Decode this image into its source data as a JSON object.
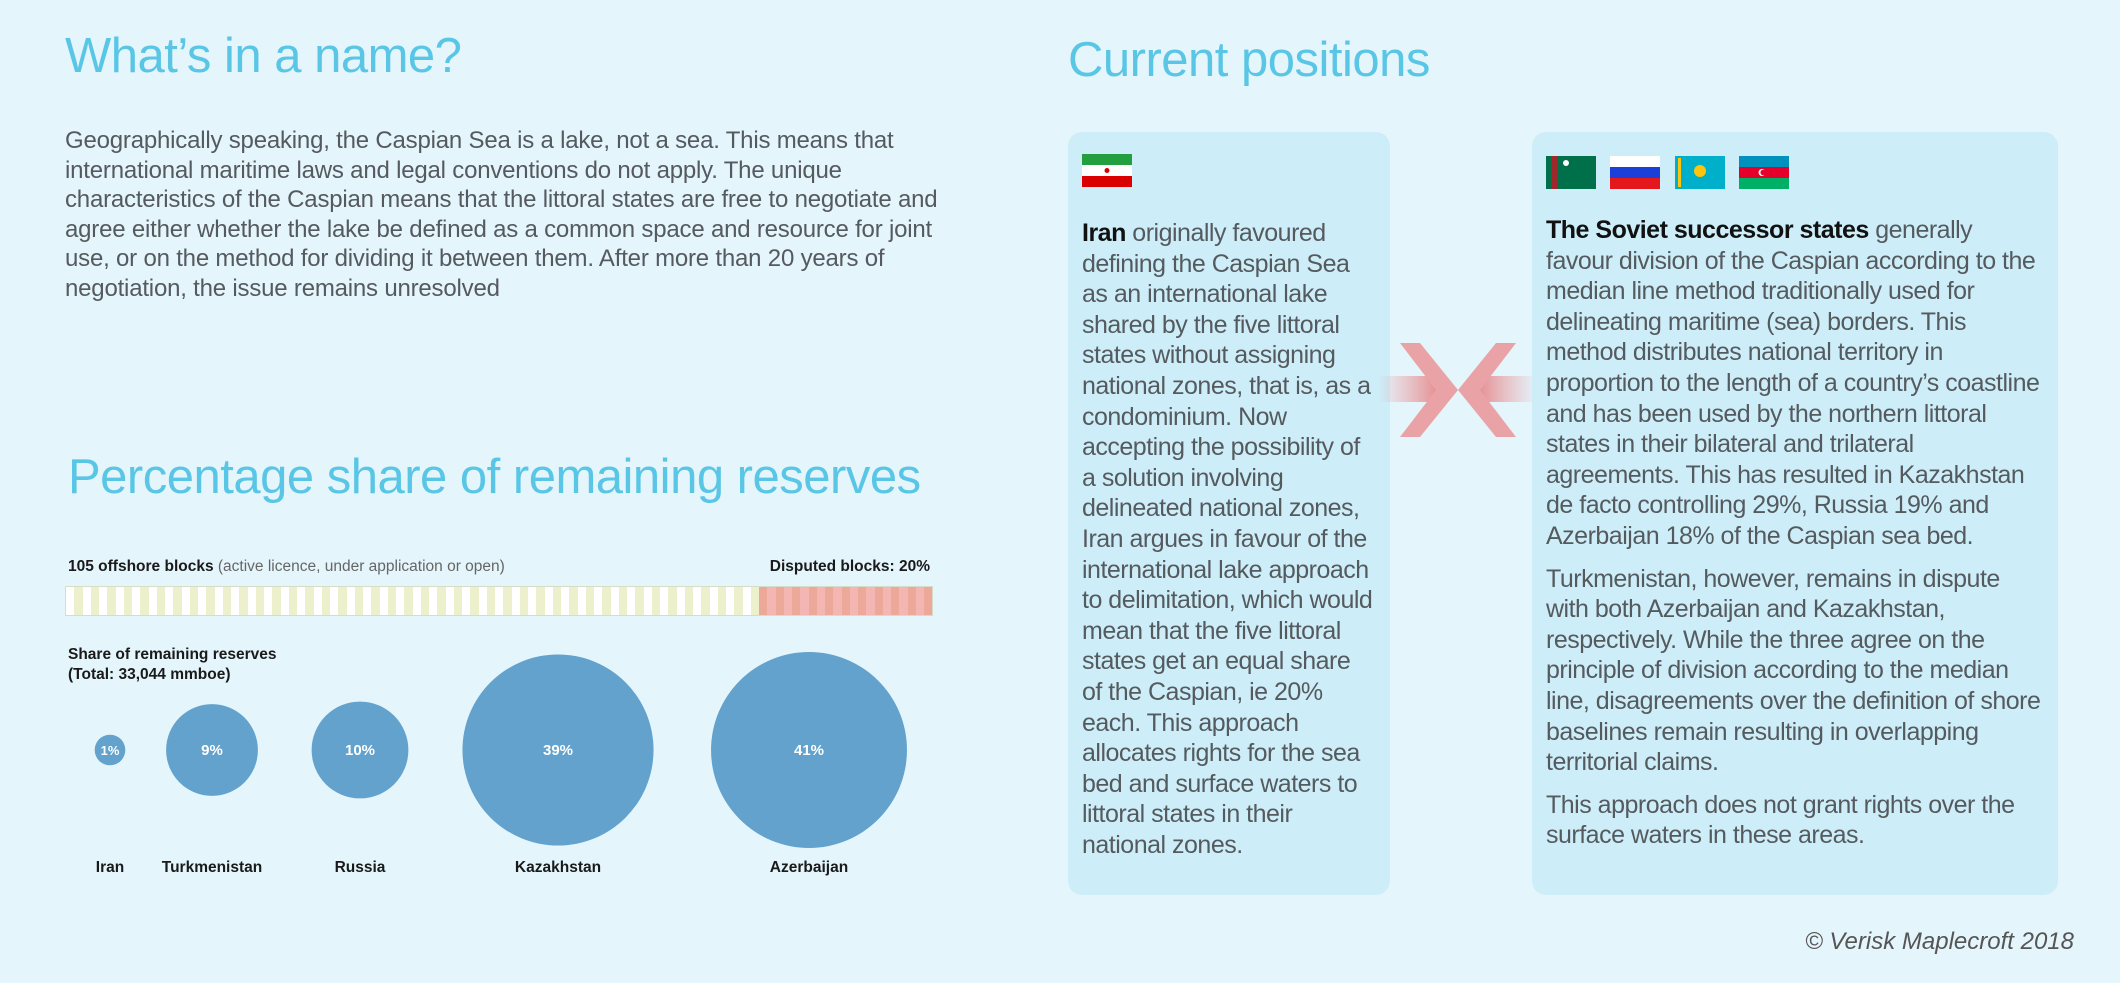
{
  "intro": {
    "title": "What’s in a name?",
    "body": "Geographically speaking, the Caspian Sea is a lake, not a sea. This means that international maritime laws and legal conventions do not apply. The unique characteristics of the Caspian means that the littoral states are free to negotiate and agree either whether the lake be defined as a common space and resource for joint use, or on the method for dividing it between them. After more than 20 years of negotiation, the issue remains unresolved"
  },
  "reserves": {
    "title": "Percentage share of remaining reserves",
    "blocks_label": "105 offshore blocks",
    "blocks_note": "(active licence, under application or open)",
    "disputed_label": "Disputed blocks: 20%",
    "share_label_1": "Share of remaining reserves",
    "share_label_2": "(Total: 33,044 mmboe)"
  },
  "chart_data": [
    {
      "type": "bar",
      "title": "105 offshore blocks",
      "total_blocks": 105,
      "disputed_percent": 20,
      "colors": {
        "undisputed": "#ecf0cc",
        "undisputed_alt": "#ffffff",
        "disputed": "#f4b6b2",
        "disputed_alt": "#eca99a"
      }
    },
    {
      "type": "bubble",
      "title": "Share of remaining reserves (Total: 33,044 mmboe)",
      "categories": [
        "Iran",
        "Turkmenistan",
        "Russia",
        "Kazakhstan",
        "Azerbaijan"
      ],
      "values": [
        1,
        9,
        10,
        39,
        41
      ],
      "labels": [
        "1%",
        "9%",
        "10%",
        "39%",
        "41%"
      ],
      "color": "#62a2cc"
    }
  ],
  "positions": {
    "title": "Current positions",
    "iran": {
      "flags": [
        "iran-flag"
      ],
      "bold": "Iran",
      "text": " originally favoured defining the Caspian Sea as an international lake shared by the five littoral states without assigning national zones, that is, as a condominium. Now accepting the possibility of a solution involving delineated national zones, Iran argues in favour of the international lake approach to delimitation, which would mean that the five littoral states get an equal share of the Caspian, ie 20% each. This approach allocates rights for the sea bed and surface waters to littoral states in their national zones."
    },
    "soviet": {
      "flags": [
        "turkmenistan-flag",
        "russia-flag",
        "kazakhstan-flag",
        "azerbaijan-flag"
      ],
      "bold": "The Soviet successor states",
      "text": " generally favour division of the Caspian according to the median line method traditionally used for delineating maritime (sea) borders. This method distributes national territory in proportion to the length of a country’s coastline and has been used by the northern littoral states in their bilateral and trilateral agreements. This has resulted in Kazakhstan de facto controlling 29%, Russia 19% and Azerbaijan 18% of the Caspian sea bed.",
      "para2": "Turkmenistan, however, remains in dispute with both Azerbaijan and Kazakhstan, respectively. While the three agree on the principle of division according to the median line, disagreements over the definition of shore baselines remain resulting in overlapping territorial claims.",
      "para3": "This approach does not grant rights over the surface waters in these areas."
    }
  },
  "copyright": "© Verisk Maplecroft 2018"
}
